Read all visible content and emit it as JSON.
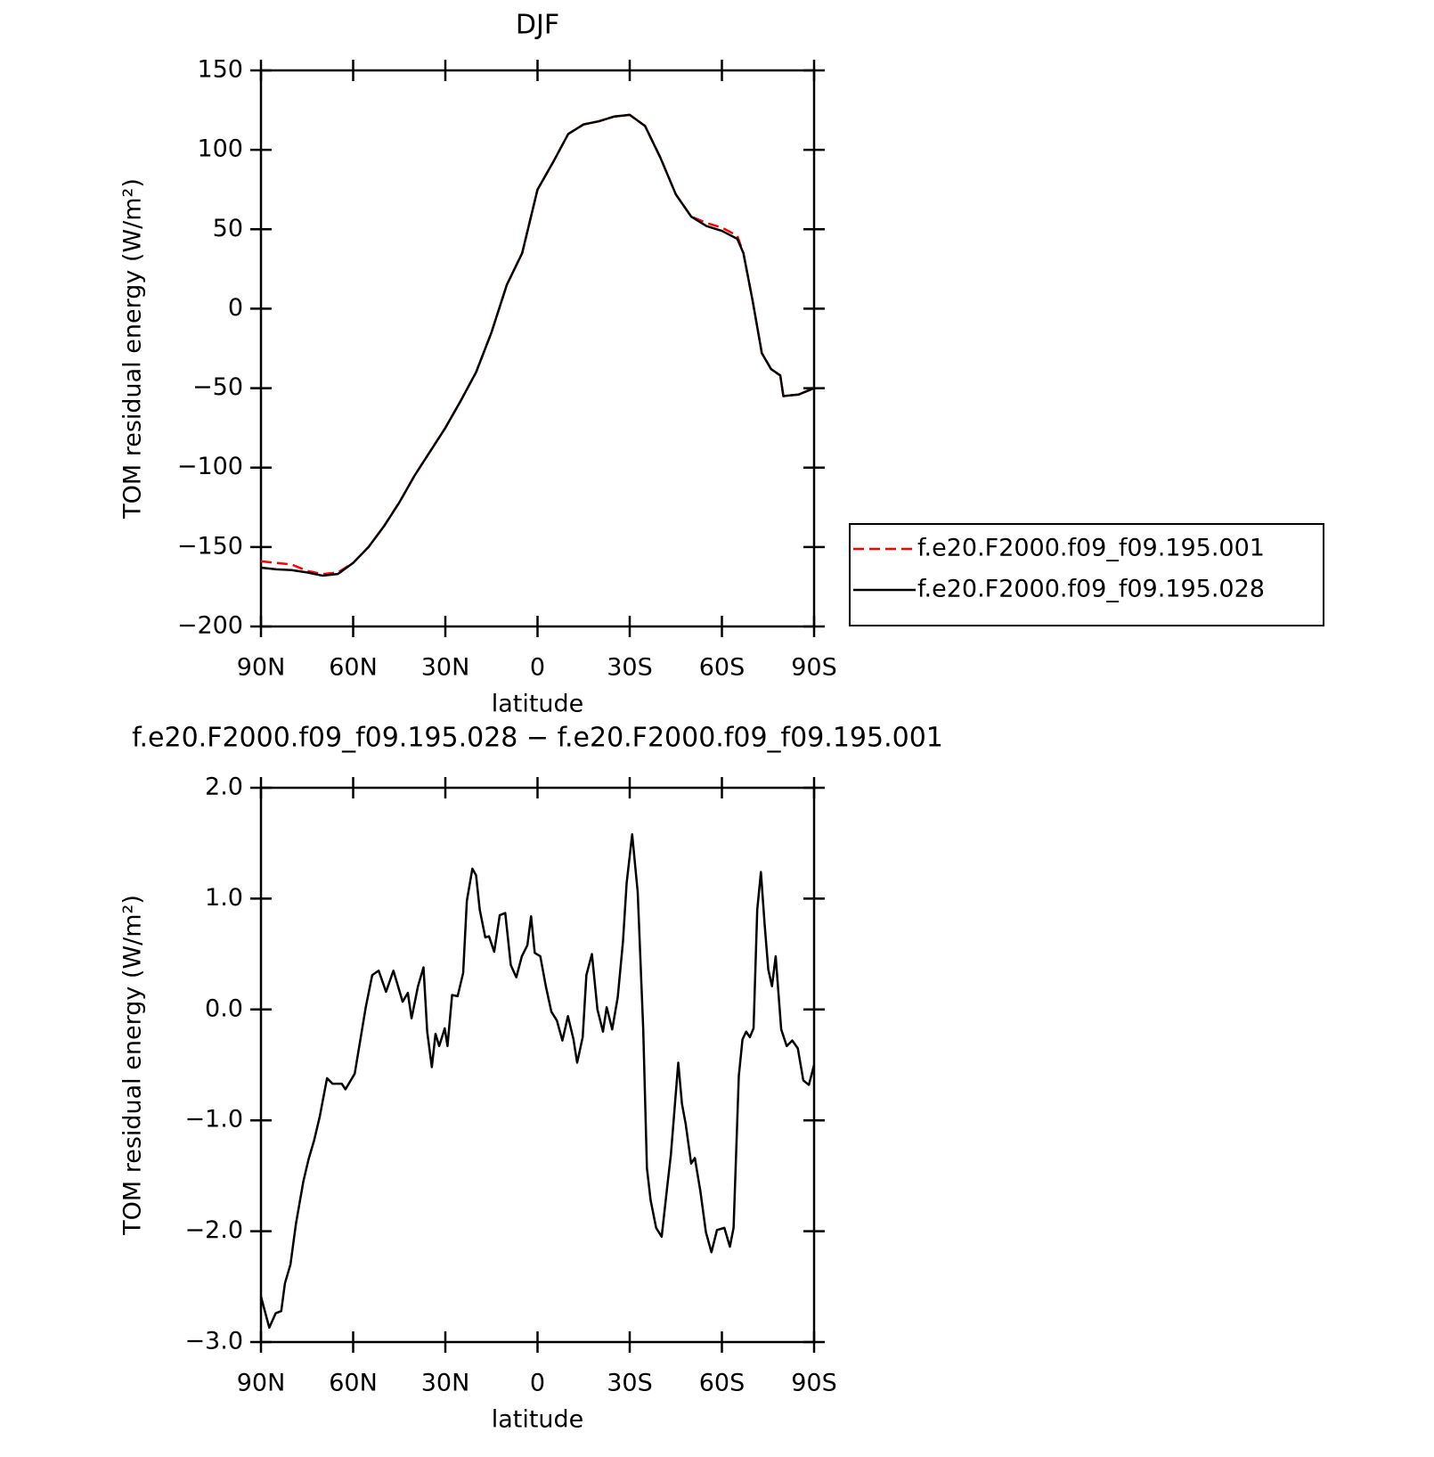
{
  "chart_data": [
    {
      "type": "line",
      "title": "DJF",
      "xlabel": "latitude",
      "ylabel": "TOM residual energy (W/m²)",
      "x": [
        90,
        85,
        80,
        75,
        70,
        65,
        60,
        55,
        50,
        45,
        40,
        35,
        30,
        25,
        20,
        15,
        10,
        5,
        0,
        -5,
        -10,
        -15,
        -20,
        -25,
        -30,
        -35,
        -40,
        -45,
        -50,
        -55,
        -60,
        -65,
        -67,
        -70,
        -73,
        -76,
        -79,
        -80,
        -85,
        -90
      ],
      "series": [
        {
          "name": "f.e20.F2000.f09_f09.195.001",
          "color": "#ff0000",
          "dashed": true,
          "values": [
            -159,
            -160,
            -161,
            -165,
            -167,
            -166,
            -160,
            -150,
            -137,
            -122,
            -105,
            -90,
            -75,
            -58,
            -40,
            -15,
            15,
            35,
            75,
            92,
            110,
            116,
            118,
            121,
            122,
            115,
            95,
            72,
            58,
            54,
            51,
            46,
            35,
            5,
            -28,
            -38,
            -42,
            -55,
            -54,
            -50
          ]
        },
        {
          "name": "f.e20.F2000.f09_f09.195.028",
          "color": "#000000",
          "dashed": false,
          "values": [
            -163,
            -164,
            -164.5,
            -166,
            -168,
            -167,
            -160,
            -150,
            -137,
            -122,
            -105,
            -90,
            -75,
            -58,
            -40,
            -15,
            15,
            35,
            75,
            92,
            110,
            116,
            118,
            121,
            122,
            115,
            95,
            72,
            58,
            52,
            49,
            44,
            35,
            5,
            -28,
            -38,
            -42,
            -55,
            -54,
            -50
          ]
        }
      ],
      "xlim": [
        90,
        -90
      ],
      "xticks": [
        {
          "value": 90,
          "label": "90N"
        },
        {
          "value": 60,
          "label": "60N"
        },
        {
          "value": 30,
          "label": "30N"
        },
        0,
        {
          "value": -30,
          "label": "30S"
        },
        {
          "value": -60,
          "label": "60S"
        },
        {
          "value": -90,
          "label": "90S"
        }
      ],
      "ylim": [
        -200,
        150
      ],
      "yticks": [
        {
          "value": -200,
          "label": "−200"
        },
        {
          "value": -150,
          "label": "−150"
        },
        {
          "value": -100,
          "label": "−100"
        },
        {
          "value": -50,
          "label": "−50"
        },
        0,
        50,
        100,
        150
      ]
    },
    {
      "type": "line",
      "title": "f.e20.F2000.f09_f09.195.028 − f.e20.F2000.f09_f09.195.001",
      "xlabel": "latitude",
      "ylabel": "TOM residual energy (W/m²)",
      "x": [
        90,
        87.3,
        85.2,
        83.4,
        82.2,
        80.4,
        78.6,
        76.2,
        74.5,
        72.7,
        70.9,
        68.5,
        66.7,
        63.7,
        62.5,
        59.5,
        55.9,
        53.8,
        51.7,
        49.3,
        46.9,
        43.9,
        42.2,
        41.0,
        38.9,
        37.1,
        35.9,
        34.4,
        33.2,
        32.0,
        30.2,
        29.3,
        27.8,
        26.0,
        24.2,
        23.0,
        21.2,
        20.0,
        18.8,
        17.0,
        15.8,
        14.1,
        12.3,
        10.5,
        8.7,
        6.9,
        5.1,
        3.3,
        2.1,
        0.9,
        -0.9,
        -2.7,
        -4.5,
        -6.3,
        -8.1,
        -9.9,
        -11.7,
        -12.9,
        -14.7,
        -15.9,
        -17.7,
        -19.5,
        -21.3,
        -22.5,
        -24.3,
        -26.1,
        -27.8,
        -29.0,
        -30.8,
        -32.6,
        -34.4,
        -35.6,
        -36.8,
        -38.6,
        -40.4,
        -42.2,
        -43.4,
        -45.8,
        -47.0,
        -48.2,
        -50.0,
        -51.2,
        -53.0,
        -54.8,
        -56.6,
        -58.4,
        -60.8,
        -62.6,
        -63.8,
        -65.5,
        -66.7,
        -67.9,
        -69.1,
        -70.3,
        -71.5,
        -72.7,
        -73.9,
        -75.1,
        -76.3,
        -77.5,
        -79.3,
        -81.1,
        -82.9,
        -84.7,
        -86.5,
        -88.3,
        -90
      ],
      "series": [
        {
          "color": "#000000",
          "dashed": false,
          "values": [
            -2.59,
            -2.87,
            -2.74,
            -2.72,
            -2.47,
            -2.3,
            -1.93,
            -1.55,
            -1.35,
            -1.18,
            -0.97,
            -0.62,
            -0.67,
            -0.67,
            -0.72,
            -0.58,
            0.02,
            0.31,
            0.35,
            0.16,
            0.35,
            0.07,
            0.15,
            -0.08,
            0.21,
            0.38,
            -0.2,
            -0.52,
            -0.22,
            -0.33,
            -0.17,
            -0.33,
            0.13,
            0.12,
            0.33,
            0.98,
            1.27,
            1.21,
            0.9,
            0.65,
            0.66,
            0.52,
            0.85,
            0.87,
            0.4,
            0.29,
            0.48,
            0.58,
            0.84,
            0.51,
            0.48,
            0.21,
            -0.02,
            -0.1,
            -0.28,
            -0.06,
            -0.27,
            -0.48,
            -0.25,
            0.31,
            0.5,
            0.0,
            -0.2,
            0.02,
            -0.18,
            0.11,
            0.61,
            1.14,
            1.58,
            1.06,
            -0.18,
            -1.43,
            -1.72,
            -1.97,
            -2.05,
            -1.6,
            -1.31,
            -0.48,
            -0.85,
            -1.03,
            -1.39,
            -1.34,
            -1.64,
            -2.01,
            -2.19,
            -1.99,
            -1.97,
            -2.14,
            -1.97,
            -0.6,
            -0.27,
            -0.2,
            -0.25,
            -0.17,
            0.9,
            1.24,
            0.77,
            0.36,
            0.21,
            0.48,
            -0.18,
            -0.33,
            -0.28,
            -0.35,
            -0.64,
            -0.68,
            -0.5
          ]
        }
      ],
      "xlim": [
        90,
        -90
      ],
      "xticks": [
        {
          "value": 90,
          "label": "90N"
        },
        {
          "value": 60,
          "label": "60N"
        },
        {
          "value": 30,
          "label": "30N"
        },
        0,
        {
          "value": -30,
          "label": "30S"
        },
        {
          "value": -60,
          "label": "60S"
        },
        {
          "value": -90,
          "label": "90S"
        }
      ],
      "ylim": [
        -3,
        2
      ],
      "yticks": [
        {
          "value": -3,
          "label": "−3.0"
        },
        {
          "value": -2,
          "label": "−2.0"
        },
        {
          "value": -1,
          "label": "−1.0"
        },
        {
          "value": 0,
          "label": "0.0"
        },
        {
          "value": 1,
          "label": "1.0"
        },
        {
          "value": 2,
          "label": "2.0"
        }
      ]
    }
  ]
}
